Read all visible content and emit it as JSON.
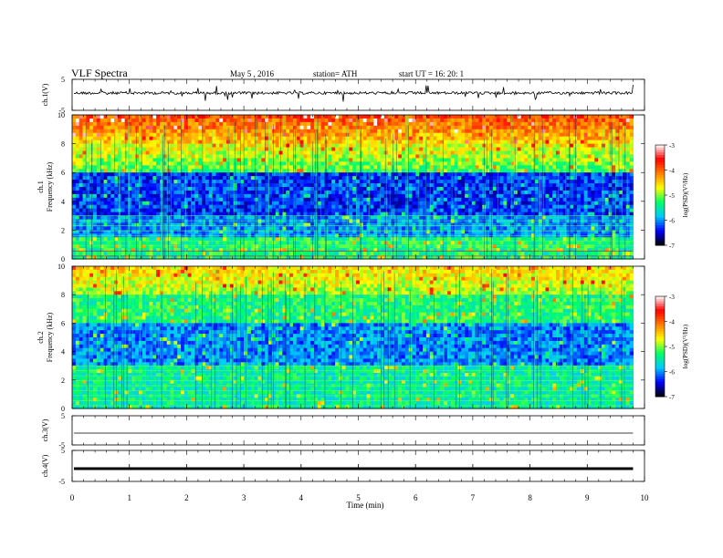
{
  "header": {
    "title": "VLF  Spectra",
    "date": "May 5  , 2016",
    "station": "station= ATH",
    "start": "start  UT  =    16: 20: 1"
  },
  "colorbar": {
    "label": "log(PSD)(V²/Hz)",
    "ticks": [
      "-3",
      "-4",
      "-5",
      "-6",
      "-7"
    ],
    "range": [
      -7,
      -3
    ],
    "colors": [
      "#000000",
      "#0000ff",
      "#00c8ff",
      "#00ff66",
      "#ffff00",
      "#ff8000",
      "#ff0000",
      "#ffffff"
    ]
  },
  "chart_data": [
    {
      "type": "line",
      "name": "waveform",
      "ylabel": "ch.1(V)",
      "ylim": [
        -5,
        5
      ],
      "yticks": [
        "5",
        "-5"
      ],
      "baseline": 0
    },
    {
      "type": "heatmap",
      "ylabel": "Frequency  (kHz)",
      "ylabel_top": "ch.1",
      "ylim": [
        0,
        10
      ],
      "yticks": [
        "0",
        "2",
        "4",
        "6",
        "8",
        "10"
      ],
      "xlim": [
        0,
        10
      ],
      "data_until": 9.8,
      "zlim": [
        -7,
        -3
      ]
    },
    {
      "type": "heatmap",
      "ylabel": "Frequency  (kHz)",
      "ylabel_top": "ch.2",
      "ylim": [
        0,
        10
      ],
      "yticks": [
        "0",
        "2",
        "4",
        "6",
        "8",
        "10"
      ],
      "xlim": [
        0,
        10
      ],
      "data_until": 9.8,
      "zlim": [
        -7,
        -3
      ]
    },
    {
      "type": "line",
      "name": "waveform",
      "ylabel": "ch.3(V)",
      "ylim": [
        -5,
        5
      ],
      "yticks": [
        "5",
        "-5"
      ],
      "baseline": 0
    },
    {
      "type": "line",
      "name": "waveform",
      "ylabel": "ch.4(V)",
      "ylim": [
        -5,
        5
      ],
      "yticks": [
        "5",
        "-5"
      ],
      "baseline": 0
    }
  ],
  "xaxis": {
    "label": "Time  (min)",
    "ticks": [
      "0",
      "1",
      "2",
      "3",
      "4",
      "5",
      "6",
      "7",
      "8",
      "9",
      "10"
    ],
    "xlim": [
      0,
      10
    ]
  }
}
